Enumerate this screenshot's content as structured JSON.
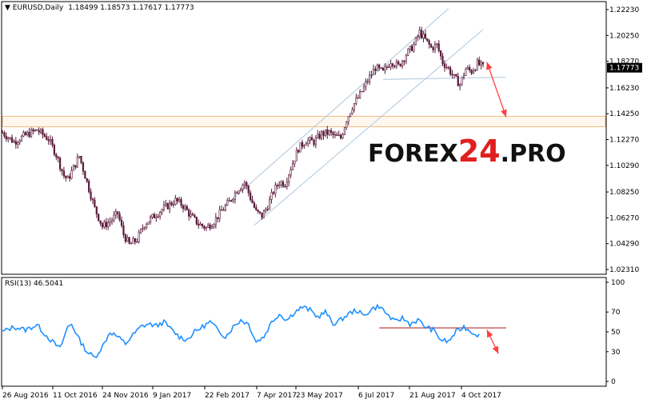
{
  "chart_data": [
    {
      "type": "candlestick",
      "title": "EURUSD,Daily",
      "symbol": "EURUSD",
      "timeframe": "Daily",
      "ohlc_text": "1.18499 1.18573 1.17617 1.17773",
      "current_price": "1.17773",
      "y_ticks": [
        "1.22230",
        "1.20250",
        "1.18270",
        "1.16230",
        "1.14250",
        "1.12270",
        "1.10290",
        "1.08250",
        "1.06270",
        "1.04290",
        "1.02310"
      ],
      "ylim": [
        1.0231,
        1.2223
      ],
      "x_ticks": [
        "26 Aug 2016",
        "11 Oct 2016",
        "24 Nov 2016",
        "9 Jan 2017",
        "22 Feb 2017",
        "7 Apr 2017",
        "23 May 2017",
        "6 Jul 2017",
        "21 Aug 2017",
        "4 Oct 2017"
      ],
      "close_path": [
        [
          0,
          1.128
        ],
        [
          6,
          1.121
        ],
        [
          12,
          1.126
        ],
        [
          18,
          1.13
        ],
        [
          24,
          1.123
        ],
        [
          28,
          1.111
        ],
        [
          32,
          1.095
        ],
        [
          34,
          1.092
        ],
        [
          37,
          1.101
        ],
        [
          40,
          1.11
        ],
        [
          44,
          1.09
        ],
        [
          48,
          1.07
        ],
        [
          52,
          1.056
        ],
        [
          56,
          1.06
        ],
        [
          60,
          1.066
        ],
        [
          63,
          1.05
        ],
        [
          66,
          1.042
        ],
        [
          70,
          1.046
        ],
        [
          74,
          1.058
        ],
        [
          78,
          1.063
        ],
        [
          82,
          1.068
        ],
        [
          86,
          1.072
        ],
        [
          90,
          1.076
        ],
        [
          94,
          1.072
        ],
        [
          98,
          1.064
        ],
        [
          102,
          1.058
        ],
        [
          106,
          1.055
        ],
        [
          110,
          1.06
        ],
        [
          114,
          1.068
        ],
        [
          118,
          1.075
        ],
        [
          122,
          1.084
        ],
        [
          126,
          1.09
        ],
        [
          129,
          1.078
        ],
        [
          132,
          1.067
        ],
        [
          135,
          1.064
        ],
        [
          138,
          1.072
        ],
        [
          141,
          1.083
        ],
        [
          144,
          1.09
        ],
        [
          147,
          1.089
        ],
        [
          150,
          1.101
        ],
        [
          154,
          1.116
        ],
        [
          158,
          1.122
        ],
        [
          162,
          1.121
        ],
        [
          166,
          1.127
        ],
        [
          170,
          1.128
        ],
        [
          173,
          1.125
        ],
        [
          176,
          1.124
        ],
        [
          179,
          1.138
        ],
        [
          182,
          1.148
        ],
        [
          186,
          1.157
        ],
        [
          190,
          1.168
        ],
        [
          194,
          1.178
        ],
        [
          198,
          1.174
        ],
        [
          202,
          1.183
        ],
        [
          206,
          1.179
        ],
        [
          210,
          1.188
        ],
        [
          214,
          1.195
        ],
        [
          217,
          1.205
        ],
        [
          220,
          1.199
        ],
        [
          223,
          1.193
        ],
        [
          226,
          1.195
        ],
        [
          229,
          1.182
        ],
        [
          232,
          1.177
        ],
        [
          235,
          1.17
        ],
        [
          238,
          1.165
        ],
        [
          241,
          1.177
        ],
        [
          244,
          1.175
        ],
        [
          247,
          1.181
        ],
        [
          250,
          1.178
        ]
      ],
      "annotations": {
        "resistance_zone": [
          1.1325,
          1.1405
        ],
        "horizontal_support": [
          [
            198,
            1.1688
          ],
          [
            262,
            1.1704
          ]
        ],
        "channel_upper": [
          [
            115,
            1.071
          ],
          [
            232,
            1.223
          ]
        ],
        "channel_lower": [
          [
            131,
            1.057
          ],
          [
            250,
            1.207
          ]
        ],
        "forecast_arrow": [
          [
            252,
            1.182
          ],
          [
            262,
            1.14
          ]
        ],
        "watermark": "FOREX24.PRO"
      },
      "colors": {
        "background": "#ffffff",
        "candles": "#5a1a3a",
        "channel": "#b8cfe3",
        "support": "#b8cfe3",
        "zone": "#f7b97a",
        "arrow": "#ff4040",
        "price_tag_bg": "#000000",
        "price_tag_text": "#ffffff",
        "watermark_dark": "#111111",
        "watermark_accent": "#e02020"
      }
    },
    {
      "type": "line",
      "title": "RSI(13) 46.5041",
      "name": "RSI(13)",
      "value_text": "46.5041",
      "y_ticks": [
        "100",
        "70",
        "50",
        "30",
        "0"
      ],
      "ylim": [
        0,
        100
      ],
      "x_ticks": [
        "26 Aug 2016",
        "11 Oct 2016",
        "24 Nov 2016",
        "9 Jan 2017",
        "22 Feb 2017",
        "7 Apr 2017",
        "23 May 2017",
        "6 Jul 2017",
        "21 Aug 2017",
        "4 Oct 2017"
      ],
      "points": [
        [
          0,
          50
        ],
        [
          6,
          55
        ],
        [
          12,
          52
        ],
        [
          18,
          57
        ],
        [
          22,
          48
        ],
        [
          26,
          40
        ],
        [
          30,
          33
        ],
        [
          34,
          55
        ],
        [
          36,
          58
        ],
        [
          40,
          42
        ],
        [
          44,
          30
        ],
        [
          48,
          24
        ],
        [
          52,
          35
        ],
        [
          56,
          50
        ],
        [
          60,
          45
        ],
        [
          64,
          38
        ],
        [
          68,
          47
        ],
        [
          72,
          55
        ],
        [
          76,
          58
        ],
        [
          80,
          56
        ],
        [
          84,
          60
        ],
        [
          88,
          52
        ],
        [
          92,
          45
        ],
        [
          96,
          42
        ],
        [
          100,
          50
        ],
        [
          104,
          55
        ],
        [
          108,
          60
        ],
        [
          112,
          52
        ],
        [
          116,
          45
        ],
        [
          120,
          55
        ],
        [
          124,
          62
        ],
        [
          128,
          58
        ],
        [
          132,
          40
        ],
        [
          136,
          45
        ],
        [
          140,
          60
        ],
        [
          144,
          68
        ],
        [
          148,
          62
        ],
        [
          152,
          70
        ],
        [
          156,
          75
        ],
        [
          160,
          72
        ],
        [
          164,
          65
        ],
        [
          168,
          70
        ],
        [
          172,
          58
        ],
        [
          176,
          62
        ],
        [
          180,
          68
        ],
        [
          184,
          72
        ],
        [
          188,
          66
        ],
        [
          192,
          73
        ],
        [
          196,
          76
        ],
        [
          200,
          68
        ],
        [
          204,
          60
        ],
        [
          208,
          64
        ],
        [
          212,
          58
        ],
        [
          216,
          62
        ],
        [
          220,
          55
        ],
        [
          224,
          52
        ],
        [
          228,
          42
        ],
        [
          232,
          40
        ],
        [
          236,
          50
        ],
        [
          240,
          55
        ],
        [
          244,
          50
        ],
        [
          248,
          46.5
        ]
      ],
      "level_line": [
        [
          196,
          54
        ],
        [
          262,
          54
        ]
      ],
      "forecast_arrow": [
        [
          252,
          52
        ],
        [
          258,
          28
        ]
      ],
      "colors": {
        "line": "#1e90ff",
        "level": "#b03030",
        "arrow": "#ff4040"
      }
    }
  ]
}
